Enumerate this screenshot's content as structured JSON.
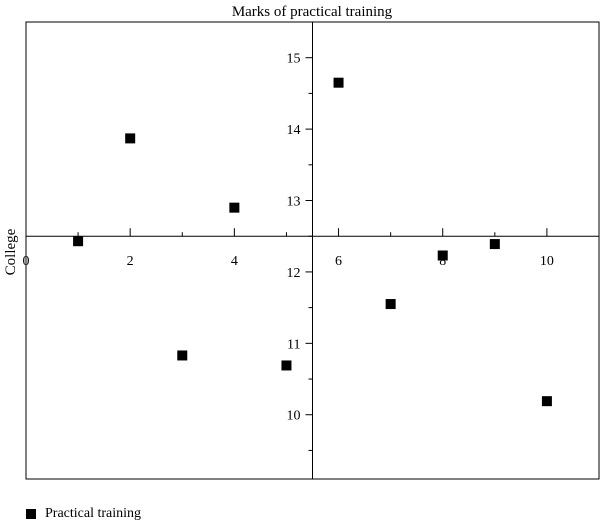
{
  "chart_data": {
    "type": "scatter",
    "title": "Marks of practical training",
    "xlabel": "",
    "ylabel": "College",
    "xlim": [
      0,
      11
    ],
    "ylim": [
      9.1,
      15.5
    ],
    "x_origin_at_y": 12.5,
    "y_axis_at_x": 5.5,
    "x_ticks": [
      0,
      2,
      4,
      6,
      8,
      10
    ],
    "x_tick_labels": [
      "0",
      "2",
      "4",
      "6",
      "8",
      "10"
    ],
    "y_ticks": [
      10,
      11,
      12,
      13,
      14,
      15
    ],
    "y_tick_labels": [
      "10",
      "11",
      "12",
      "13",
      "14",
      "15"
    ],
    "grid": false,
    "legend": "bottom-left",
    "series": [
      {
        "name": "Practical training",
        "color": "#000000",
        "marker": "square",
        "points": [
          {
            "x": 1,
            "y": 12.43
          },
          {
            "x": 2,
            "y": 13.87
          },
          {
            "x": 3,
            "y": 10.83
          },
          {
            "x": 4,
            "y": 12.9
          },
          {
            "x": 5,
            "y": 10.69
          },
          {
            "x": 6,
            "y": 14.65
          },
          {
            "x": 7,
            "y": 11.55
          },
          {
            "x": 8,
            "y": 12.23
          },
          {
            "x": 9,
            "y": 12.39
          },
          {
            "x": 10,
            "y": 10.19
          }
        ]
      }
    ]
  },
  "legend": {
    "label": "Practical training"
  }
}
